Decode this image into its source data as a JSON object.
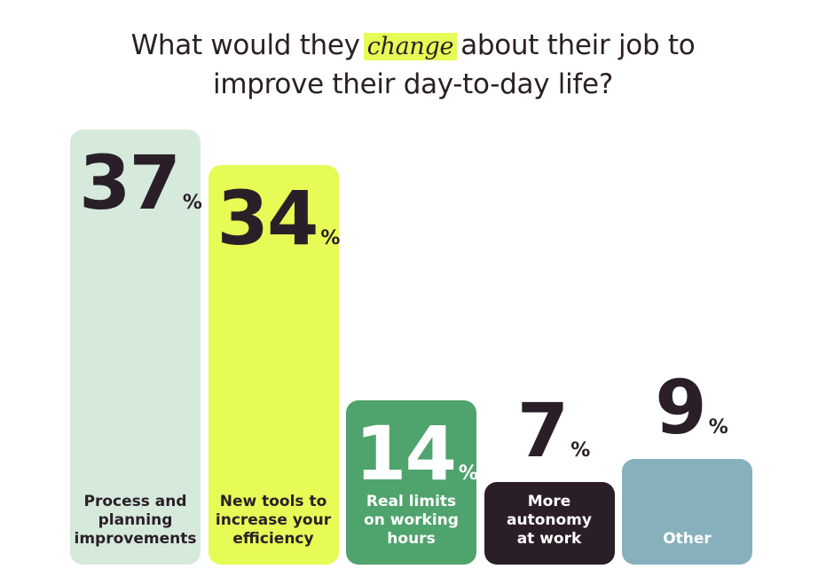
{
  "chart_data": {
    "type": "bar",
    "title_before": "What would they",
    "title_highlight": "change",
    "title_after": "about their job to improve their day-to-day life?",
    "categories": [
      "Process and planning improvements",
      "New tools to increase your efficiency",
      "Real limits on working hours",
      "More autonomy at work",
      "Other"
    ],
    "labels": [
      "Process and\nplanning\nimprovements",
      "New tools to\nincrease your\nefficiency",
      "Real limits\non working\nhours",
      "More\nautonomy\nat work",
      "Other"
    ],
    "values": [
      37,
      34,
      14,
      7,
      9
    ],
    "unit": "%",
    "colors": [
      "#d6eadc",
      "#e6fb55",
      "#4fa36c",
      "#2a1f28",
      "#86b0bc"
    ],
    "label_colors": [
      "#2a1f28",
      "#2a1f28",
      "#ffffff",
      "#ffffff",
      "#ffffff"
    ],
    "ylim": [
      0,
      37
    ]
  }
}
